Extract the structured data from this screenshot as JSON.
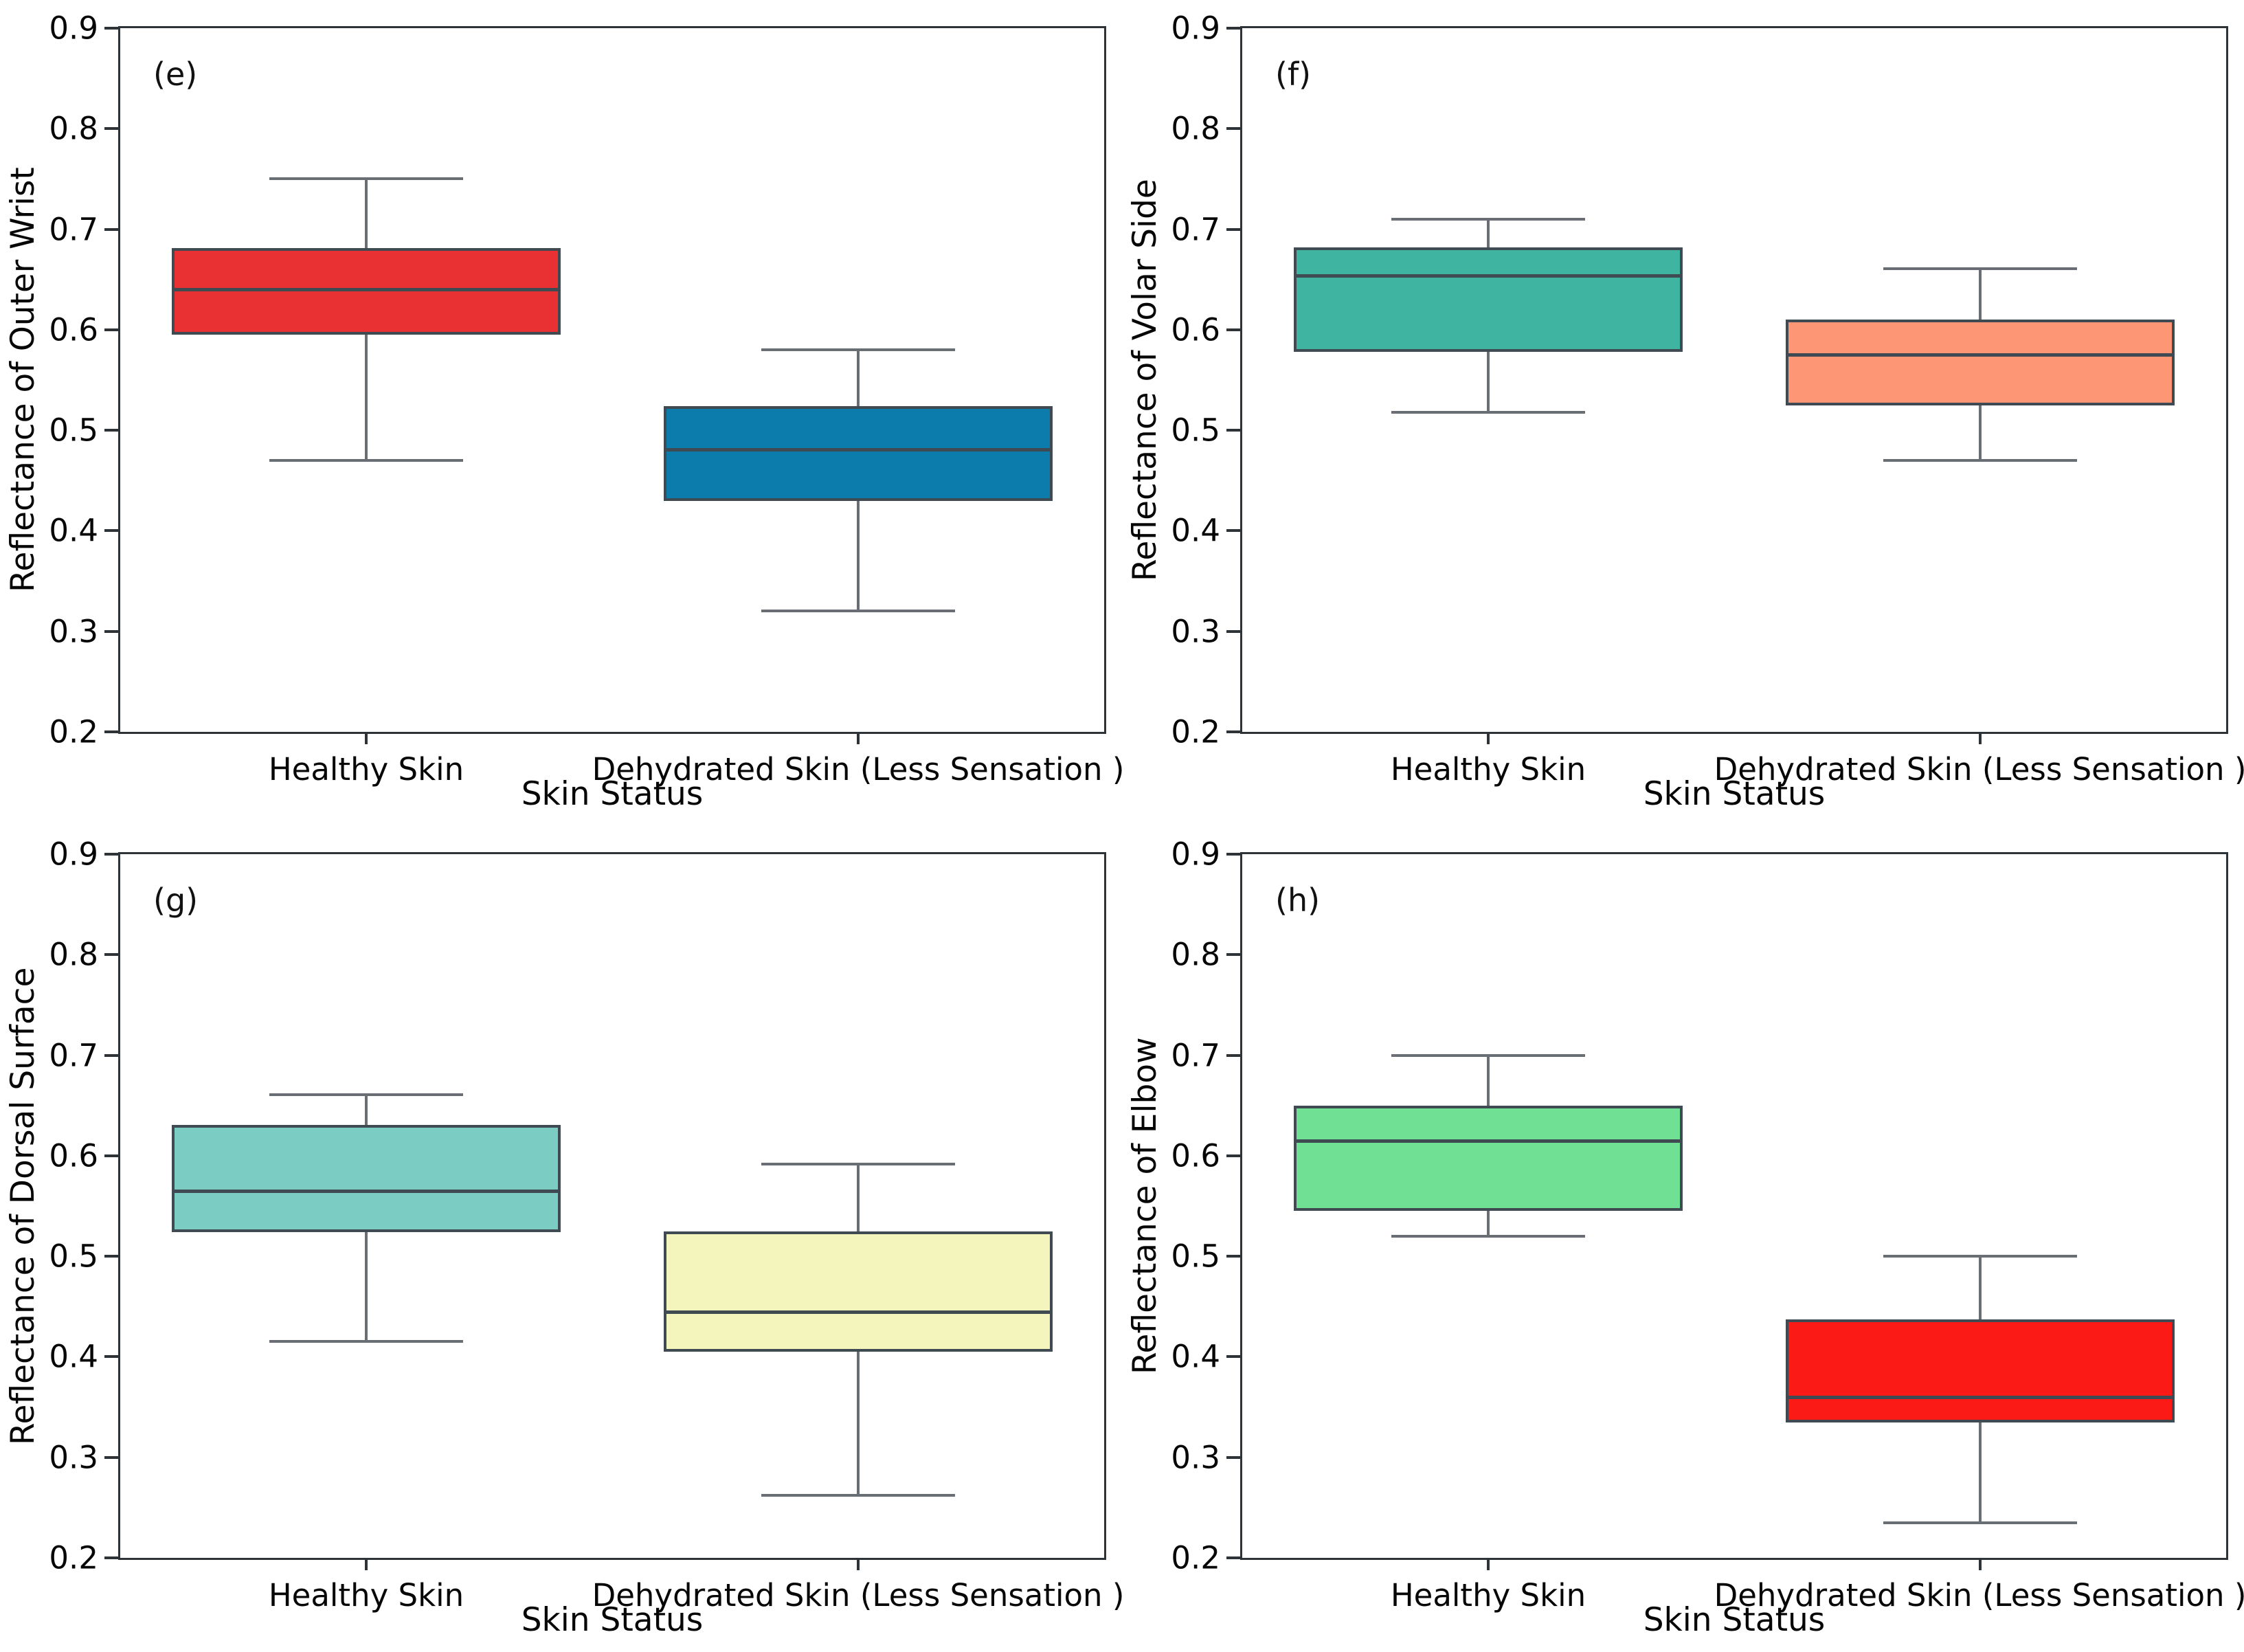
{
  "figure": {
    "background": "#ffffff",
    "spine_color": "#2e3338",
    "box_edge_color": "#3f4a52",
    "median_color": "#3f4a52",
    "whisker_color": "#686e73",
    "y_tick_labels": [
      "0.9",
      "0.8",
      "0.7",
      "0.6",
      "0.5",
      "0.4",
      "0.3",
      "0.2"
    ]
  },
  "chart_data": [
    {
      "type": "box",
      "panel": "(e)",
      "ylabel": "Reflectance of Outer Wrist",
      "xlabel": "Skin Status",
      "categories": [
        "Healthy Skin",
        "Dehydrated Skin (Less Sensation )"
      ],
      "ylim": [
        0.2,
        0.9
      ],
      "y_ticks": [
        0.9,
        0.8,
        0.7,
        0.6,
        0.5,
        0.4,
        0.3,
        0.2
      ],
      "grid": false,
      "series": [
        {
          "name": "Healthy Skin",
          "color": "#e93134",
          "whisker_low": 0.47,
          "q1": 0.595,
          "median": 0.64,
          "q3": 0.681,
          "whisker_high": 0.75
        },
        {
          "name": "Dehydrated Skin (Less Sensation )",
          "color": "#0c7cac",
          "whisker_low": 0.32,
          "q1": 0.43,
          "median": 0.481,
          "q3": 0.524,
          "whisker_high": 0.58
        }
      ]
    },
    {
      "type": "box",
      "panel": "(f)",
      "ylabel": "Reflectance of Volar Side",
      "xlabel": "Skin Status",
      "categories": [
        "Healthy Skin",
        "Dehydrated Skin (Less Sensation )"
      ],
      "ylim": [
        0.2,
        0.9
      ],
      "y_ticks": [
        0.9,
        0.8,
        0.7,
        0.6,
        0.5,
        0.4,
        0.3,
        0.2
      ],
      "grid": false,
      "series": [
        {
          "name": "Healthy Skin",
          "color": "#3fb4a1",
          "whisker_low": 0.518,
          "q1": 0.578,
          "median": 0.654,
          "q3": 0.682,
          "whisker_high": 0.71
        },
        {
          "name": "Dehydrated Skin (Less Sensation )",
          "color": "#fd9674",
          "whisker_low": 0.47,
          "q1": 0.525,
          "median": 0.575,
          "q3": 0.61,
          "whisker_high": 0.661
        }
      ]
    },
    {
      "type": "box",
      "panel": "(g)",
      "ylabel": "Reflectance of Dorsal Surface",
      "xlabel": "Skin Status",
      "categories": [
        "Healthy Skin",
        "Dehydrated Skin (Less Sensation )"
      ],
      "ylim": [
        0.2,
        0.9
      ],
      "y_ticks": [
        0.9,
        0.8,
        0.7,
        0.6,
        0.5,
        0.4,
        0.3,
        0.2
      ],
      "grid": false,
      "series": [
        {
          "name": "Healthy Skin",
          "color": "#7bccc3",
          "whisker_low": 0.415,
          "q1": 0.524,
          "median": 0.565,
          "q3": 0.631,
          "whisker_high": 0.661
        },
        {
          "name": "Dehydrated Skin (Less Sensation )",
          "color": "#f4f5bc",
          "whisker_low": 0.262,
          "q1": 0.405,
          "median": 0.445,
          "q3": 0.525,
          "whisker_high": 0.592
        }
      ]
    },
    {
      "type": "box",
      "panel": "(h)",
      "ylabel": "Reflectance of Elbow",
      "xlabel": "Skin Status",
      "categories": [
        "Healthy Skin",
        "Dehydrated Skin (Less Sensation )"
      ],
      "ylim": [
        0.2,
        0.9
      ],
      "y_ticks": [
        0.9,
        0.8,
        0.7,
        0.6,
        0.5,
        0.4,
        0.3,
        0.2
      ],
      "grid": false,
      "series": [
        {
          "name": "Healthy Skin",
          "color": "#70e095",
          "whisker_low": 0.52,
          "q1": 0.545,
          "median": 0.615,
          "q3": 0.65,
          "whisker_high": 0.7
        },
        {
          "name": "Dehydrated Skin (Less Sensation )",
          "color": "#fb1a16",
          "whisker_low": 0.235,
          "q1": 0.335,
          "median": 0.36,
          "q3": 0.437,
          "whisker_high": 0.5
        }
      ]
    }
  ]
}
